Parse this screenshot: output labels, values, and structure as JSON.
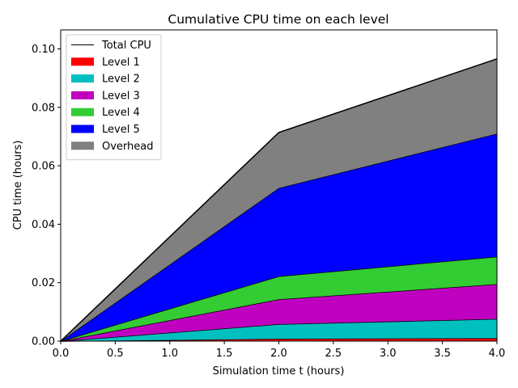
{
  "chart_data": {
    "type": "area",
    "stacked": true,
    "title": "Cumulative CPU time on each level",
    "xlabel": "Simulation time t (hours)",
    "ylabel": "CPU time (hours)",
    "xlim": [
      0,
      4
    ],
    "ylim": [
      0,
      0.1065
    ],
    "x": [
      0,
      2,
      4
    ],
    "xticks": [
      0,
      0.5,
      1,
      1.5,
      2,
      2.5,
      3,
      3.5,
      4
    ],
    "xtick_labels": [
      "0.0",
      "0.5",
      "1.0",
      "1.5",
      "2.0",
      "2.5",
      "3.0",
      "3.5",
      "4.0"
    ],
    "yticks": [
      0,
      0.02,
      0.04,
      0.06,
      0.08,
      0.1
    ],
    "ytick_labels": [
      "0.00",
      "0.02",
      "0.04",
      "0.06",
      "0.08",
      "0.10"
    ],
    "grid": false,
    "legend_position": "top-left",
    "total": {
      "name": "Total CPU",
      "color": "#000000",
      "values": [
        0,
        0.0714,
        0.0966
      ]
    },
    "series": [
      {
        "name": "Level 1",
        "color": "#ff0000",
        "values": [
          0,
          0.0008,
          0.001
        ]
      },
      {
        "name": "Level 2",
        "color": "#00bfbf",
        "values": [
          0,
          0.005,
          0.0066
        ]
      },
      {
        "name": "Level 3",
        "color": "#bf00bf",
        "values": [
          0,
          0.0085,
          0.0119
        ]
      },
      {
        "name": "Level 4",
        "color": "#33cc33",
        "values": [
          0,
          0.0079,
          0.0094
        ]
      },
      {
        "name": "Level 5",
        "color": "#0000ff",
        "values": [
          0,
          0.0302,
          0.0421
        ]
      },
      {
        "name": "Overhead",
        "color": "#808080",
        "values": [
          0,
          0.019,
          0.0256
        ]
      }
    ]
  }
}
